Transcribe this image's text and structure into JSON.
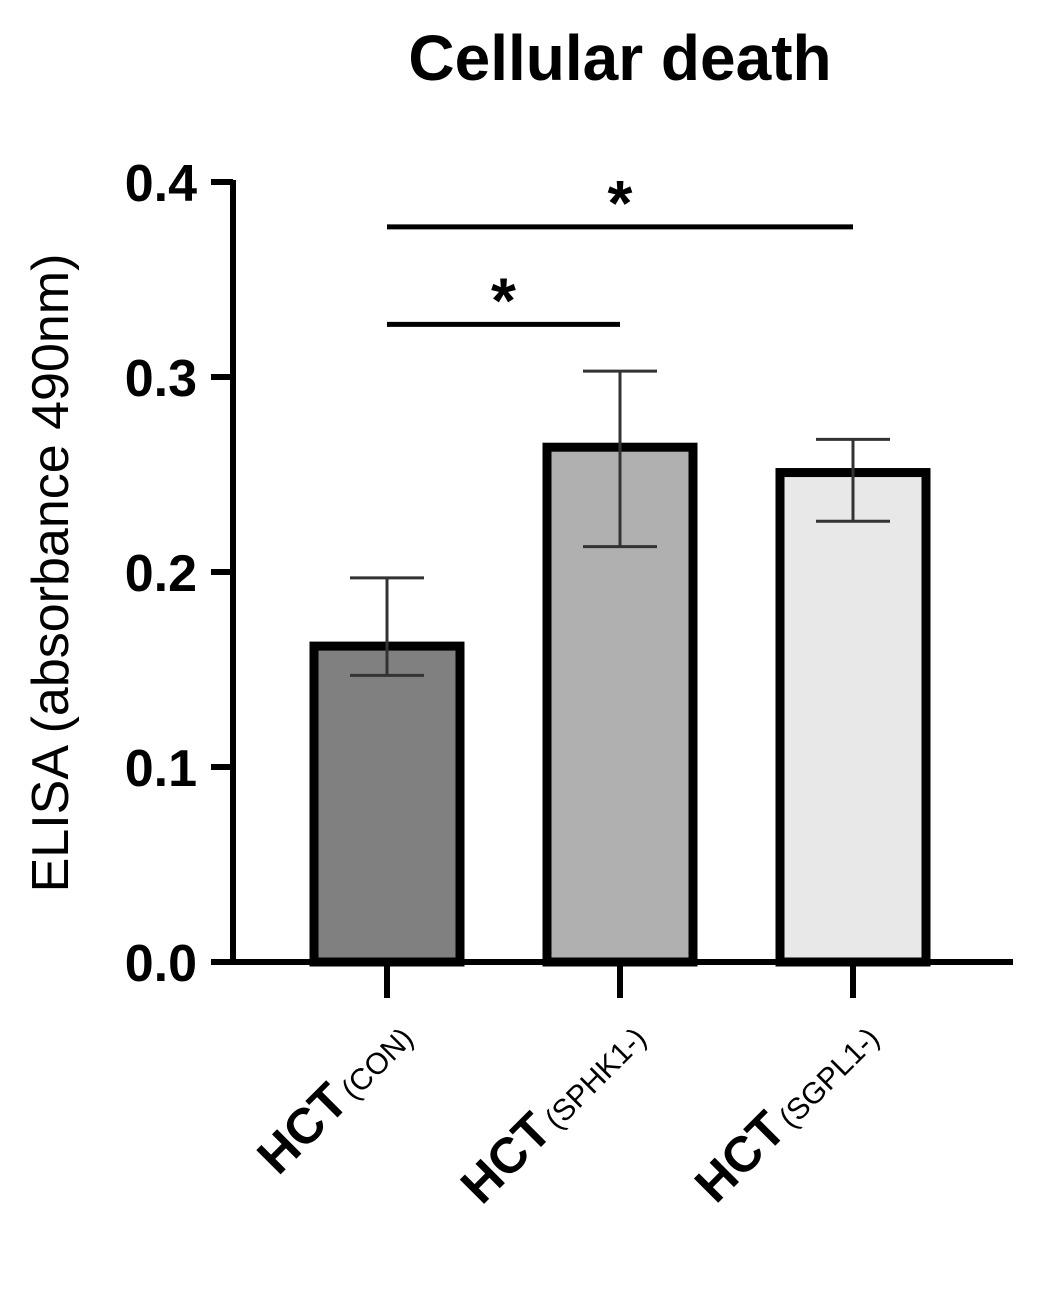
{
  "chart_data": {
    "type": "bar",
    "title": "Cellular death",
    "ylabel": "ELISA (absorbance 490nm)",
    "xlabel": "",
    "ylim": [
      0,
      0.4
    ],
    "yticks": [
      "0.0",
      "0.1",
      "0.2",
      "0.3",
      "0.4"
    ],
    "grid": false,
    "categories": [
      {
        "main": "HCT",
        "sub": "(CON)"
      },
      {
        "main": "HCT",
        "sub": "(SPHK1-)"
      },
      {
        "main": "HCT",
        "sub": "(SGPL1-)"
      }
    ],
    "values": [
      0.162,
      0.264,
      0.251
    ],
    "error_low": [
      0.147,
      0.213,
      0.226
    ],
    "error_high": [
      0.197,
      0.303,
      0.268
    ],
    "bar_colors": [
      "#808080",
      "#b0b0b0",
      "#e8e8e8"
    ],
    "significance": [
      {
        "from": 0,
        "to": 1,
        "label": "*",
        "y": 0.327
      },
      {
        "from": 0,
        "to": 2,
        "label": "*",
        "y": 0.377
      }
    ]
  }
}
